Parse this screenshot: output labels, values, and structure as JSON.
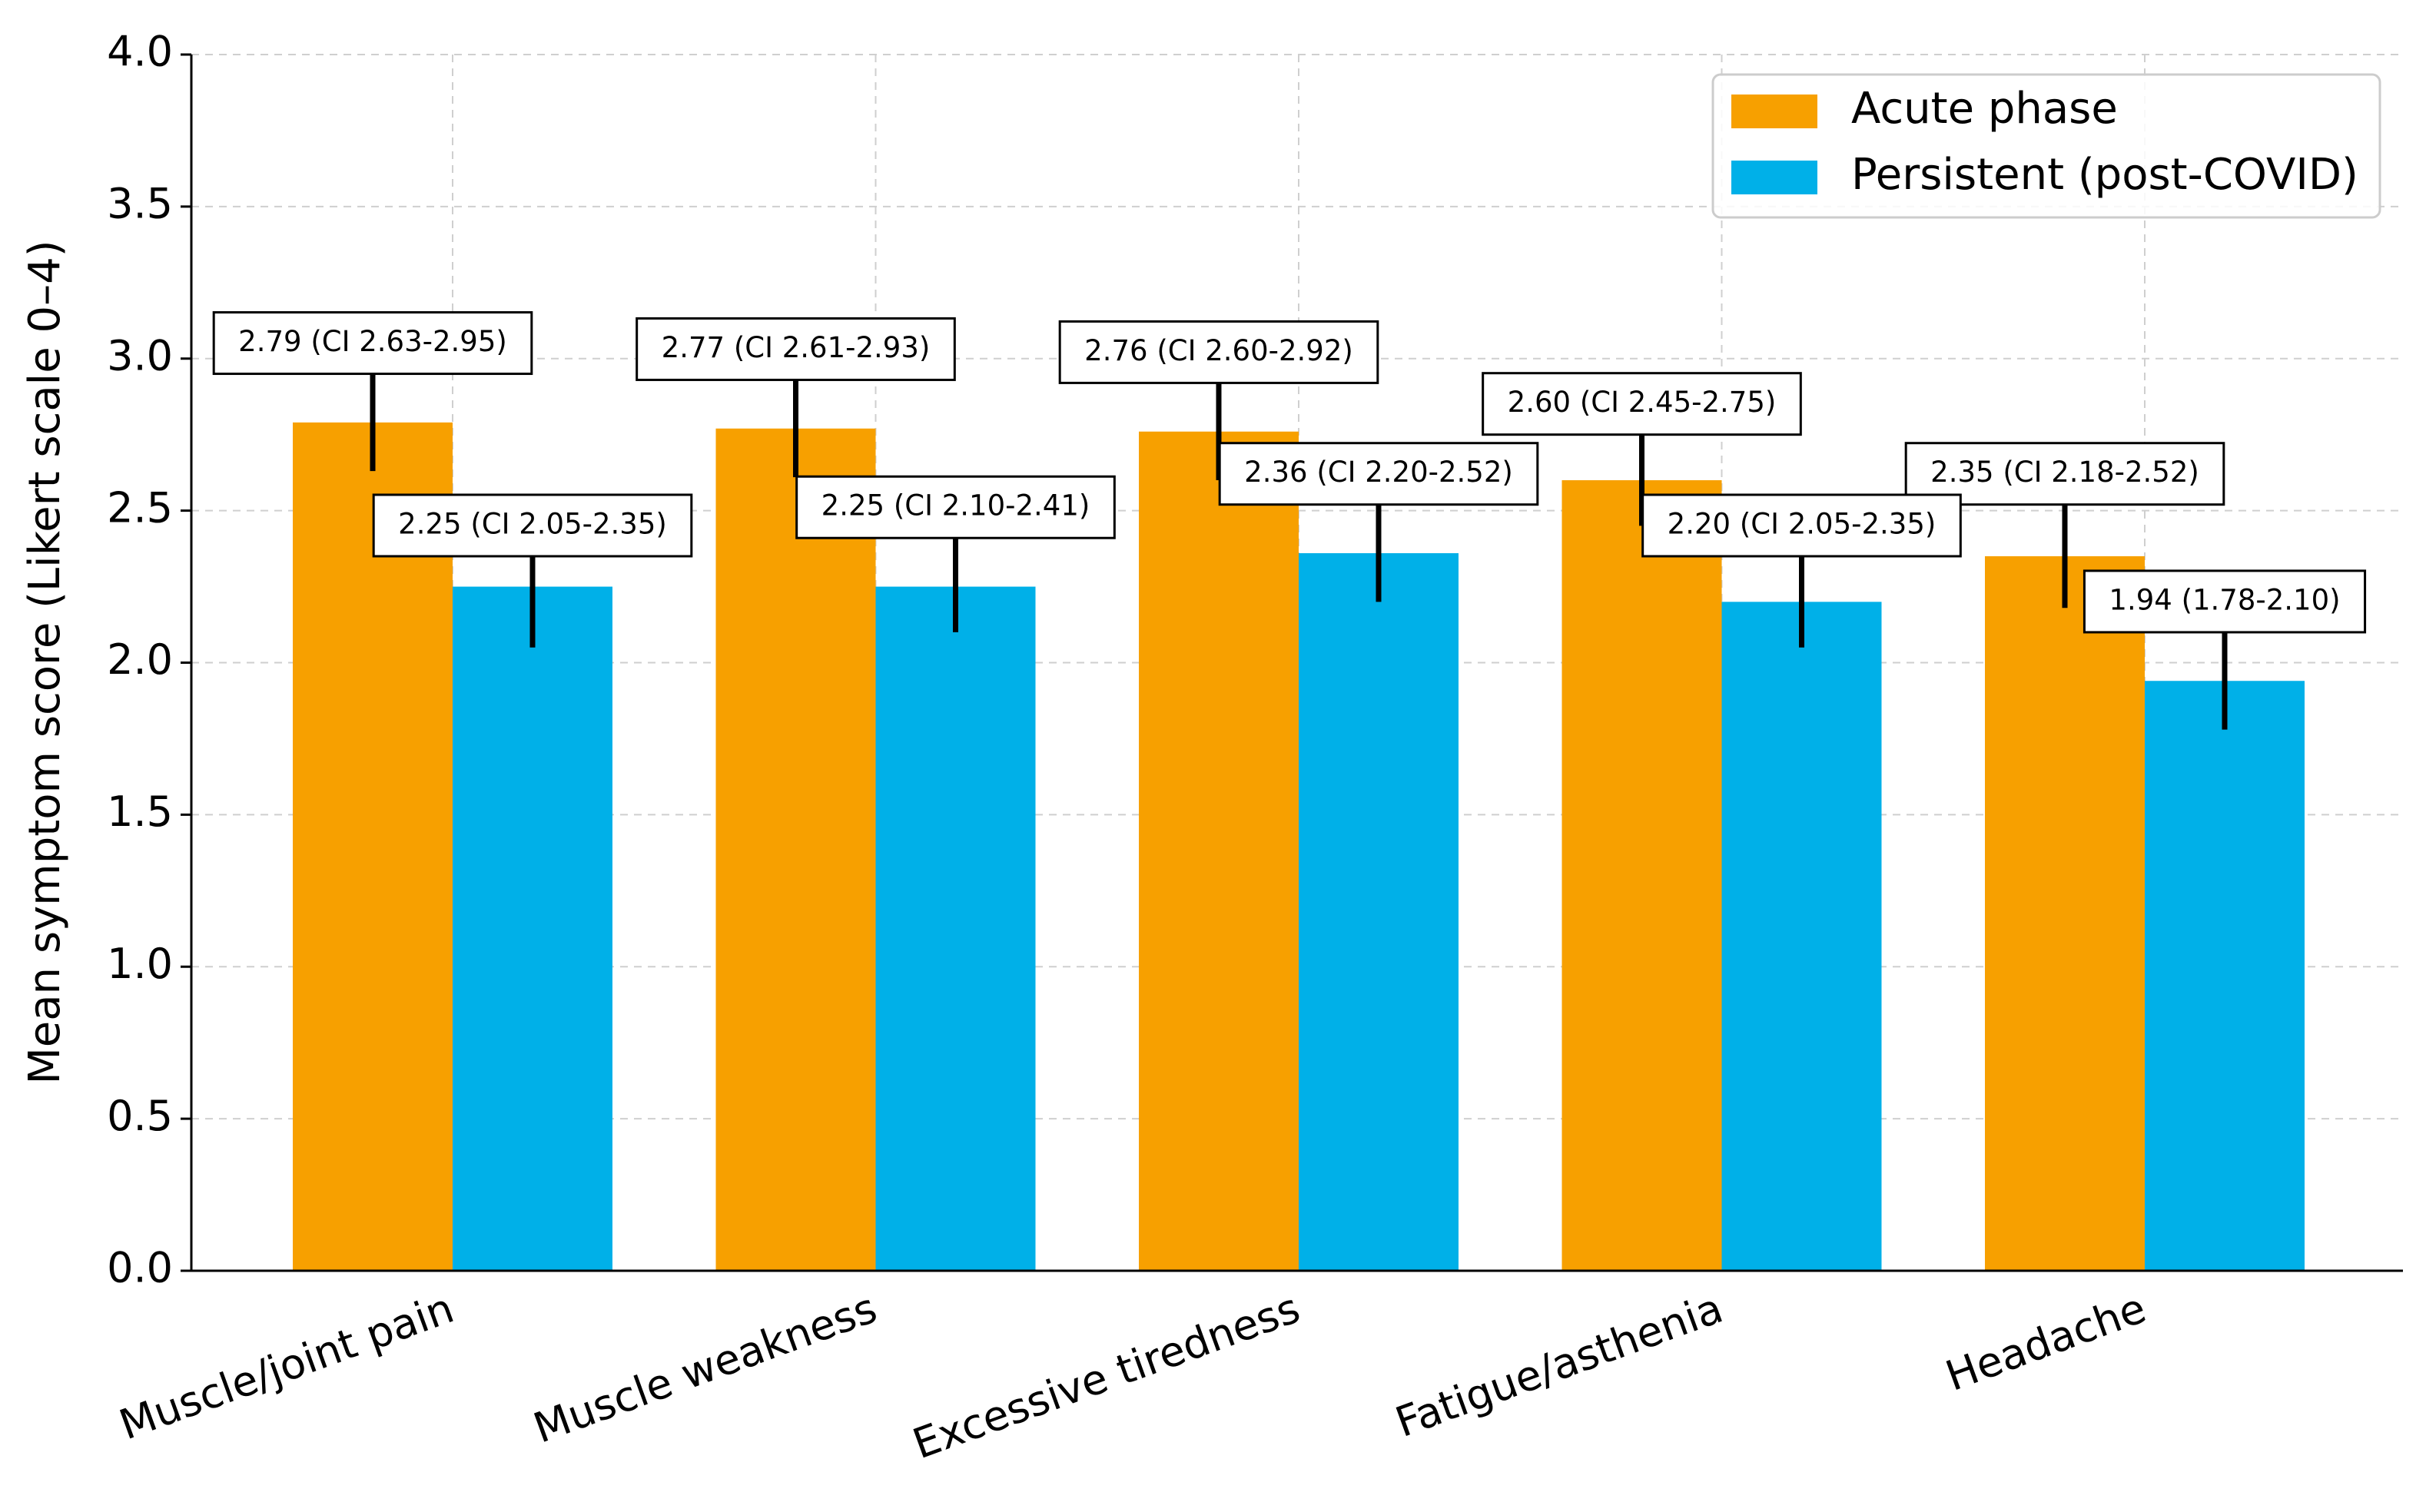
{
  "chart_data": {
    "type": "bar",
    "y_label": "Mean symptom score (Likert scale 0–4)",
    "categories": [
      "Muscle/joint pain",
      "Muscle weakness",
      "Excessive tiredness",
      "Fatigue/asthenia",
      "Headache"
    ],
    "series": [
      {
        "name": "Acute phase",
        "color": "#f7a000",
        "values": [
          2.79,
          2.77,
          2.76,
          2.6,
          2.35
        ],
        "ci_low": [
          2.63,
          2.61,
          2.6,
          2.45,
          2.18
        ],
        "ci_high": [
          2.95,
          2.93,
          2.92,
          2.75,
          2.52
        ],
        "value_labels": [
          "2.79 (CI 2.63-2.95)",
          "2.77 (CI 2.61-2.93)",
          "2.76 (CI 2.60-2.92)",
          "2.60 (CI 2.45-2.75)",
          "2.35 (CI 2.18-2.52)"
        ]
      },
      {
        "name": "Persistent (post-COVID)",
        "color": "#00b0e8",
        "values": [
          2.25,
          2.25,
          2.36,
          2.2,
          1.94
        ],
        "ci_low": [
          2.05,
          2.1,
          2.2,
          2.05,
          1.78
        ],
        "ci_high": [
          2.35,
          2.41,
          2.52,
          2.35,
          2.1
        ],
        "value_labels": [
          "2.25 (CI 2.05-2.35)",
          "2.25 (CI 2.10-2.41)",
          "2.36 (CI 2.20-2.52)",
          "2.20 (CI 2.05-2.35)",
          "1.94 (1.78-2.10)"
        ]
      }
    ],
    "ylim": [
      0,
      4
    ],
    "yticks": [
      {
        "value": 0,
        "label": "0.0"
      },
      {
        "value": 0.5,
        "label": "0.5"
      },
      {
        "value": 1,
        "label": "1.0"
      },
      {
        "value": 1.5,
        "label": "1.5"
      },
      {
        "value": 2,
        "label": "2.0"
      },
      {
        "value": 2.5,
        "label": "2.5"
      },
      {
        "value": 3,
        "label": "3.0"
      },
      {
        "value": 3.5,
        "label": "3.5"
      },
      {
        "value": 4,
        "label": "4.0"
      }
    ],
    "grid": true,
    "legend": "upper right"
  }
}
